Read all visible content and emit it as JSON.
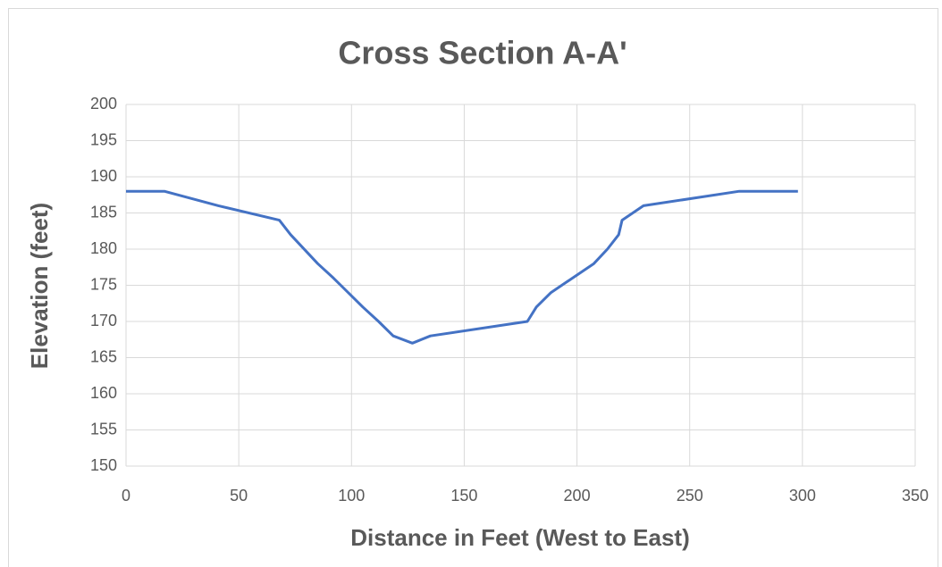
{
  "chart_data": {
    "type": "line",
    "title": "Cross Section A-A'",
    "x_label": "Distance in Feet (West to East)",
    "y_label": "Elevation (feet)",
    "x": [
      0,
      17,
      41,
      68,
      73,
      85,
      92,
      105,
      112,
      118.5,
      127,
      135,
      178,
      182,
      188.5,
      207.5,
      213.5,
      218.5,
      220,
      229.5,
      272,
      298
    ],
    "values": [
      188,
      188,
      186,
      184,
      182,
      178,
      176,
      172,
      170,
      168,
      167,
      168,
      170,
      172,
      174,
      178,
      180,
      182,
      184,
      186,
      188,
      188
    ],
    "color": "#4472c4",
    "xlim": [
      0,
      350
    ],
    "xticks": [
      0,
      50,
      100,
      150,
      200,
      250,
      300,
      350
    ],
    "ylim": [
      150,
      200
    ],
    "yticks": [
      150,
      155,
      160,
      165,
      170,
      175,
      180,
      185,
      190,
      195,
      200
    ],
    "grid": true
  }
}
